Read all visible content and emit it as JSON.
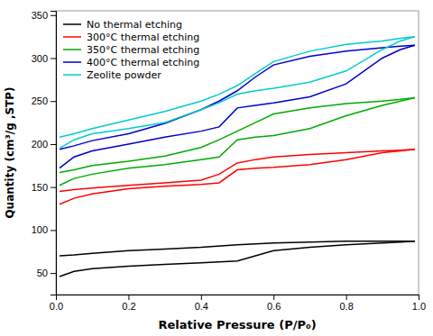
{
  "chart_data": {
    "type": "line",
    "title": "",
    "xlabel": "Relative Pressure (P/P₀)",
    "ylabel": "Quantity (cm³/g ,STP)",
    "xlim": [
      0.0,
      1.0
    ],
    "ylim": [
      25,
      355
    ],
    "xticks": [
      {
        "value": 0.0,
        "label": "0.0"
      },
      0.2,
      0.4,
      0.6,
      0.8,
      {
        "value": 1.0,
        "label": "1.0"
      }
    ],
    "yticks": [
      50,
      100,
      150,
      200,
      250,
      300,
      350
    ],
    "grid": false,
    "legend": "upper left",
    "series": [
      {
        "name": "No thermal etching",
        "color": "#000000",
        "x": [
          0.01,
          0.05,
          0.1,
          0.2,
          0.3,
          0.4,
          0.5,
          0.55,
          0.6,
          0.7,
          0.8,
          0.9,
          0.95,
          0.99
        ],
        "values": [
          46,
          52,
          55,
          58,
          60,
          62,
          64,
          70,
          76,
          80,
          83,
          85,
          86,
          87
        ]
      },
      {
        "color": "#000000",
        "x": [
          0.99,
          0.95,
          0.9,
          0.8,
          0.7,
          0.6,
          0.55,
          0.5,
          0.4,
          0.3,
          0.2,
          0.1,
          0.05,
          0.01
        ],
        "values": [
          87,
          87,
          87,
          87,
          86,
          85,
          84,
          83,
          80,
          78,
          76,
          73,
          71,
          70
        ]
      },
      {
        "name": "300°C thermal etching",
        "color": "#ff0000",
        "x": [
          0.01,
          0.05,
          0.1,
          0.2,
          0.3,
          0.4,
          0.45,
          0.5,
          0.55,
          0.6,
          0.7,
          0.8,
          0.9,
          0.95,
          0.99
        ],
        "values": [
          130,
          137,
          142,
          148,
          151,
          153,
          155,
          170,
          172,
          173,
          176,
          182,
          190,
          192,
          194
        ]
      },
      {
        "color": "#ff0000",
        "x": [
          0.99,
          0.95,
          0.9,
          0.8,
          0.7,
          0.6,
          0.55,
          0.5,
          0.45,
          0.4,
          0.3,
          0.2,
          0.1,
          0.05,
          0.01
        ],
        "values": [
          194,
          193,
          192,
          190,
          188,
          185,
          182,
          178,
          165,
          158,
          155,
          152,
          149,
          147,
          145
        ]
      },
      {
        "name": "350°C thermal etching",
        "color": "#00aa00",
        "x": [
          0.01,
          0.05,
          0.1,
          0.2,
          0.3,
          0.4,
          0.45,
          0.5,
          0.55,
          0.6,
          0.7,
          0.8,
          0.9,
          0.95,
          0.99
        ],
        "values": [
          152,
          160,
          165,
          172,
          176,
          182,
          185,
          205,
          208,
          210,
          218,
          233,
          245,
          250,
          254
        ]
      },
      {
        "color": "#00aa00",
        "x": [
          0.99,
          0.95,
          0.9,
          0.8,
          0.7,
          0.6,
          0.55,
          0.5,
          0.45,
          0.4,
          0.3,
          0.2,
          0.1,
          0.05,
          0.01
        ],
        "values": [
          254,
          252,
          250,
          247,
          242,
          235,
          225,
          215,
          205,
          196,
          186,
          180,
          175,
          170,
          167
        ]
      },
      {
        "name": "400°C thermal etching",
        "color": "#0000cc",
        "x": [
          0.01,
          0.05,
          0.1,
          0.2,
          0.3,
          0.4,
          0.45,
          0.5,
          0.55,
          0.6,
          0.7,
          0.8,
          0.9,
          0.95,
          0.99
        ],
        "values": [
          172,
          185,
          192,
          200,
          208,
          215,
          220,
          242,
          245,
          248,
          255,
          270,
          300,
          310,
          315
        ]
      },
      {
        "color": "#0000cc",
        "x": [
          0.99,
          0.95,
          0.9,
          0.8,
          0.7,
          0.6,
          0.55,
          0.5,
          0.45,
          0.4,
          0.3,
          0.2,
          0.1,
          0.05,
          0.01
        ],
        "values": [
          315,
          314,
          312,
          308,
          302,
          292,
          278,
          262,
          250,
          240,
          224,
          212,
          204,
          198,
          194
        ]
      },
      {
        "name": "Zeolite powder",
        "color": "#00cccc",
        "x": [
          0.01,
          0.05,
          0.1,
          0.2,
          0.3,
          0.4,
          0.45,
          0.5,
          0.55,
          0.6,
          0.7,
          0.8,
          0.9,
          0.95,
          0.99
        ],
        "values": [
          195,
          205,
          212,
          218,
          225,
          240,
          248,
          258,
          262,
          265,
          272,
          285,
          310,
          320,
          325
        ]
      },
      {
        "color": "#00cccc",
        "x": [
          0.99,
          0.95,
          0.9,
          0.8,
          0.7,
          0.6,
          0.55,
          0.5,
          0.45,
          0.4,
          0.3,
          0.2,
          0.1,
          0.05,
          0.01
        ],
        "values": [
          325,
          323,
          320,
          316,
          308,
          296,
          282,
          268,
          258,
          250,
          238,
          228,
          218,
          212,
          208
        ]
      }
    ]
  }
}
